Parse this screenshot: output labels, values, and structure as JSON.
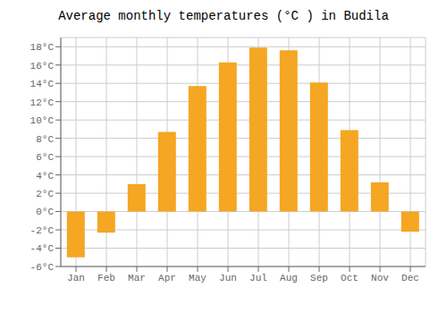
{
  "chart_data": {
    "type": "bar",
    "title": "Average monthly temperatures (°C ) in Budila",
    "categories": [
      "Jan",
      "Feb",
      "Mar",
      "Apr",
      "May",
      "Jun",
      "Jul",
      "Aug",
      "Sep",
      "Oct",
      "Nov",
      "Dec"
    ],
    "values": [
      -5.0,
      -2.3,
      3.0,
      8.7,
      13.7,
      16.3,
      17.9,
      17.6,
      14.1,
      8.9,
      3.2,
      -2.2
    ],
    "color": "#F5A623",
    "ylim": [
      -6,
      19
    ],
    "yticks": [
      {
        "value": -6,
        "label": "-6°C"
      },
      {
        "value": -4,
        "label": "-4°C"
      },
      {
        "value": -2,
        "label": "-2°C"
      },
      {
        "value": 0,
        "label": "0°C"
      },
      {
        "value": 2,
        "label": "2°C"
      },
      {
        "value": 4,
        "label": "4°C"
      },
      {
        "value": 6,
        "label": "6°C"
      },
      {
        "value": 8,
        "label": "8°C"
      },
      {
        "value": 10,
        "label": "10°C"
      },
      {
        "value": 12,
        "label": "12°C"
      },
      {
        "value": 14,
        "label": "14°C"
      },
      {
        "value": 16,
        "label": "16°C"
      },
      {
        "value": 18,
        "label": "18°C"
      }
    ],
    "grid": true
  }
}
